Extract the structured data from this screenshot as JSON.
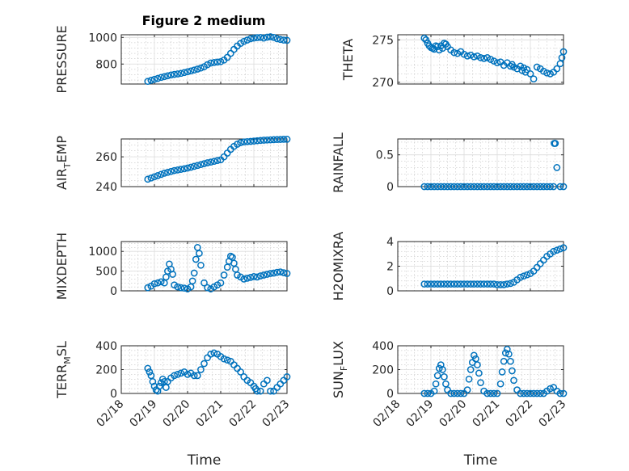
{
  "figure_title": "Figure 2 medium",
  "chart_data": [
    {
      "id": "pressure",
      "type": "scatter",
      "title": "Figure 2 medium",
      "ylabel": "PRESSURE",
      "xlabel": "",
      "xlim": [
        18,
        23
      ],
      "ylim": [
        650,
        1020
      ],
      "yticks": [
        800,
        1000
      ],
      "ytick_labels": [
        "800",
        "1000"
      ],
      "xtick_labels": [],
      "x": [
        18.8,
        18.9,
        19.0,
        19.1,
        19.2,
        19.3,
        19.4,
        19.5,
        19.6,
        19.7,
        19.8,
        19.9,
        20.0,
        20.1,
        20.2,
        20.3,
        20.4,
        20.5,
        20.6,
        20.7,
        20.8,
        20.9,
        21.0,
        21.1,
        21.2,
        21.3,
        21.4,
        21.5,
        21.6,
        21.7,
        21.8,
        21.9,
        22.0,
        22.1,
        22.2,
        22.3,
        22.4,
        22.5,
        22.6,
        22.7,
        22.8,
        22.9,
        23.0
      ],
      "y": [
        670,
        678,
        685,
        692,
        700,
        706,
        712,
        718,
        722,
        726,
        730,
        736,
        742,
        748,
        755,
        762,
        770,
        780,
        795,
        808,
        812,
        815,
        818,
        830,
        850,
        880,
        910,
        935,
        955,
        970,
        980,
        990,
        995,
        998,
        1000,
        995,
        1002,
        1005,
        1000,
        990,
        985,
        980,
        978
      ]
    },
    {
      "id": "theta",
      "type": "scatter",
      "ylabel": "THETA",
      "xlabel": "",
      "xlim": [
        18,
        23
      ],
      "ylim": [
        269.8,
        275.6
      ],
      "yticks": [
        270,
        275
      ],
      "ytick_labels": [
        "270",
        "275"
      ],
      "xtick_labels": [],
      "x": [
        18.8,
        18.85,
        18.9,
        18.95,
        19.0,
        19.05,
        19.1,
        19.15,
        19.2,
        19.25,
        19.3,
        19.35,
        19.4,
        19.45,
        19.5,
        19.6,
        19.7,
        19.8,
        19.9,
        20.0,
        20.1,
        20.2,
        20.3,
        20.4,
        20.5,
        20.6,
        20.7,
        20.8,
        20.9,
        21.0,
        21.1,
        21.2,
        21.3,
        21.4,
        21.45,
        21.5,
        21.6,
        21.7,
        21.75,
        21.8,
        21.85,
        21.9,
        22.0,
        22.1,
        22.2,
        22.3,
        22.4,
        22.5,
        22.6,
        22.7,
        22.8,
        22.9,
        22.95,
        23.0
      ],
      "y": [
        275.2,
        275.0,
        274.6,
        274.3,
        274.1,
        274.0,
        273.9,
        274.3,
        274.2,
        273.8,
        274.3,
        274.0,
        274.6,
        274.5,
        274.2,
        273.8,
        273.5,
        273.4,
        273.6,
        273.3,
        273.1,
        273.2,
        273.0,
        273.1,
        272.9,
        272.8,
        272.9,
        272.7,
        272.5,
        272.3,
        272.4,
        272.0,
        272.3,
        271.9,
        272.1,
        271.8,
        271.6,
        271.9,
        271.4,
        271.7,
        271.2,
        271.5,
        271.0,
        270.4,
        271.8,
        271.6,
        271.3,
        271.1,
        271.0,
        271.2,
        271.6,
        272.2,
        272.9,
        273.6
      ]
    },
    {
      "id": "air_temp",
      "type": "scatter",
      "ylabel": "AIR_TEMP",
      "xlabel": "",
      "xlim": [
        18,
        23
      ],
      "ylim": [
        240,
        272
      ],
      "yticks": [
        240,
        260
      ],
      "ytick_labels": [
        "240",
        "260"
      ],
      "xtick_labels": [],
      "x": [
        18.8,
        18.9,
        19.0,
        19.1,
        19.2,
        19.3,
        19.4,
        19.5,
        19.6,
        19.7,
        19.8,
        19.9,
        20.0,
        20.1,
        20.2,
        20.3,
        20.4,
        20.5,
        20.6,
        20.7,
        20.8,
        20.9,
        21.0,
        21.1,
        21.2,
        21.3,
        21.4,
        21.5,
        21.6,
        21.7,
        21.8,
        21.9,
        22.0,
        22.1,
        22.2,
        22.3,
        22.4,
        22.5,
        22.6,
        22.7,
        22.8,
        22.9,
        23.0
      ],
      "y": [
        245,
        245.8,
        246.6,
        247.4,
        248.2,
        249.0,
        249.6,
        250.2,
        250.8,
        251.2,
        251.6,
        252.0,
        252.5,
        253.0,
        253.6,
        254.2,
        254.8,
        255.4,
        256.0,
        256.5,
        257.0,
        257.5,
        258.0,
        260.0,
        262.5,
        265.0,
        267.0,
        268.5,
        269.5,
        270.0,
        270.2,
        270.4,
        270.6,
        270.8,
        271.0,
        271.2,
        271.3,
        271.4,
        271.5,
        271.6,
        271.7,
        271.8,
        271.8
      ]
    },
    {
      "id": "rainfall",
      "type": "scatter",
      "ylabel": "RAINFALL",
      "xlabel": "",
      "xlim": [
        18,
        23
      ],
      "ylim": [
        0,
        0.75
      ],
      "yticks": [
        0,
        0.5
      ],
      "ytick_labels": [
        "0",
        "0.5"
      ],
      "xtick_labels": [],
      "x": [
        18.8,
        18.9,
        19.0,
        19.1,
        19.2,
        19.3,
        19.4,
        19.5,
        19.6,
        19.7,
        19.8,
        19.9,
        20.0,
        20.1,
        20.2,
        20.3,
        20.4,
        20.5,
        20.6,
        20.7,
        20.8,
        20.9,
        21.0,
        21.1,
        21.2,
        21.3,
        21.4,
        21.5,
        21.6,
        21.7,
        21.8,
        21.9,
        22.0,
        22.1,
        22.2,
        22.3,
        22.4,
        22.5,
        22.6,
        22.7,
        22.72,
        22.75,
        22.8,
        22.9,
        23.0
      ],
      "y": [
        0,
        0,
        0,
        0,
        0,
        0,
        0,
        0,
        0,
        0,
        0,
        0,
        0,
        0,
        0,
        0,
        0,
        0,
        0,
        0,
        0,
        0,
        0,
        0,
        0,
        0,
        0,
        0,
        0,
        0,
        0,
        0,
        0,
        0,
        0,
        0,
        0,
        0,
        0,
        0,
        0.68,
        0.68,
        0.3,
        0,
        0
      ]
    },
    {
      "id": "mixdepth",
      "type": "scatter",
      "ylabel": "MIXDEPTH",
      "xlabel": "",
      "xlim": [
        18,
        23
      ],
      "ylim": [
        0,
        1250
      ],
      "yticks": [
        0,
        500,
        1000
      ],
      "ytick_labels": [
        "0",
        "500",
        "1000"
      ],
      "xtick_labels": [],
      "x": [
        18.8,
        18.9,
        19.0,
        19.1,
        19.2,
        19.3,
        19.35,
        19.4,
        19.45,
        19.5,
        19.55,
        19.6,
        19.7,
        19.8,
        19.9,
        20.0,
        20.1,
        20.15,
        20.2,
        20.25,
        20.3,
        20.35,
        20.4,
        20.5,
        20.6,
        20.7,
        20.8,
        20.9,
        21.0,
        21.1,
        21.2,
        21.25,
        21.3,
        21.35,
        21.4,
        21.45,
        21.5,
        21.6,
        21.7,
        21.8,
        21.9,
        22.0,
        22.1,
        22.2,
        22.3,
        22.4,
        22.5,
        22.6,
        22.7,
        22.8,
        22.9,
        23.0
      ],
      "y": [
        80,
        120,
        180,
        200,
        230,
        200,
        350,
        500,
        680,
        550,
        420,
        150,
        100,
        80,
        70,
        50,
        100,
        250,
        450,
        800,
        1100,
        950,
        650,
        200,
        80,
        50,
        100,
        150,
        200,
        400,
        600,
        750,
        880,
        850,
        700,
        550,
        400,
        350,
        300,
        320,
        340,
        360,
        350,
        380,
        400,
        420,
        440,
        450,
        470,
        480,
        460,
        440
      ]
    },
    {
      "id": "h2omixra",
      "type": "scatter",
      "ylabel": "H2OMIXRA",
      "xlabel": "",
      "xlim": [
        18,
        23
      ],
      "ylim": [
        0,
        4
      ],
      "yticks": [
        0,
        2,
        4
      ],
      "ytick_labels": [
        "0",
        "2",
        "4"
      ],
      "xtick_labels": [],
      "x": [
        18.8,
        18.9,
        19.0,
        19.1,
        19.2,
        19.3,
        19.4,
        19.5,
        19.6,
        19.7,
        19.8,
        19.9,
        20.0,
        20.1,
        20.2,
        20.3,
        20.4,
        20.5,
        20.6,
        20.7,
        20.8,
        20.9,
        21.0,
        21.1,
        21.2,
        21.3,
        21.4,
        21.5,
        21.6,
        21.7,
        21.8,
        21.9,
        22.0,
        22.1,
        22.2,
        22.3,
        22.4,
        22.5,
        22.6,
        22.7,
        22.8,
        22.9,
        23.0
      ],
      "y": [
        0.55,
        0.55,
        0.55,
        0.55,
        0.55,
        0.55,
        0.55,
        0.55,
        0.55,
        0.55,
        0.55,
        0.55,
        0.55,
        0.55,
        0.55,
        0.55,
        0.55,
        0.55,
        0.55,
        0.55,
        0.55,
        0.55,
        0.5,
        0.5,
        0.5,
        0.55,
        0.6,
        0.7,
        0.9,
        1.1,
        1.2,
        1.3,
        1.4,
        1.6,
        1.9,
        2.2,
        2.5,
        2.8,
        3.0,
        3.2,
        3.3,
        3.4,
        3.5
      ]
    },
    {
      "id": "terr_msl",
      "type": "scatter",
      "ylabel": "TERR_MSL",
      "xlabel": "",
      "xlim": [
        18,
        23
      ],
      "ylim": [
        0,
        400
      ],
      "yticks": [
        0,
        200,
        400
      ],
      "ytick_labels": [
        "0",
        "200",
        "400"
      ],
      "xtick_labels": [],
      "x": [
        18.8,
        18.85,
        18.9,
        18.95,
        19.0,
        19.05,
        19.1,
        19.15,
        19.2,
        19.25,
        19.3,
        19.35,
        19.4,
        19.5,
        19.6,
        19.7,
        19.8,
        19.9,
        20.0,
        20.1,
        20.2,
        20.3,
        20.4,
        20.5,
        20.6,
        20.7,
        20.8,
        20.9,
        21.0,
        21.1,
        21.2,
        21.3,
        21.4,
        21.5,
        21.6,
        21.7,
        21.8,
        21.9,
        22.0,
        22.05,
        22.1,
        22.2,
        22.3,
        22.4,
        22.5,
        22.6,
        22.7,
        22.8,
        22.9,
        23.0
      ],
      "y": [
        210,
        180,
        150,
        100,
        60,
        30,
        20,
        60,
        90,
        120,
        100,
        50,
        100,
        130,
        150,
        160,
        170,
        180,
        160,
        170,
        150,
        150,
        200,
        250,
        300,
        330,
        340,
        330,
        310,
        290,
        280,
        270,
        240,
        210,
        180,
        140,
        110,
        90,
        60,
        40,
        20,
        20,
        80,
        110,
        20,
        20,
        50,
        80,
        110,
        140
      ]
    },
    {
      "id": "sun_flux",
      "type": "scatter",
      "ylabel": "SUN_FLUX",
      "xlabel": "",
      "xlim": [
        18,
        23
      ],
      "ylim": [
        0,
        400
      ],
      "yticks": [
        0,
        200,
        400
      ],
      "ytick_labels": [
        "0",
        "200",
        "400"
      ],
      "xtick_labels": [],
      "x": [
        18.8,
        18.9,
        19.0,
        19.1,
        19.15,
        19.2,
        19.25,
        19.3,
        19.35,
        19.4,
        19.45,
        19.5,
        19.6,
        19.7,
        19.8,
        19.9,
        20.0,
        20.1,
        20.15,
        20.2,
        20.25,
        20.3,
        20.35,
        20.4,
        20.45,
        20.5,
        20.6,
        20.7,
        20.8,
        20.9,
        21.0,
        21.1,
        21.15,
        21.2,
        21.25,
        21.3,
        21.35,
        21.4,
        21.45,
        21.5,
        21.6,
        21.7,
        21.8,
        21.9,
        22.0,
        22.1,
        22.2,
        22.3,
        22.4,
        22.5,
        22.6,
        22.7,
        22.8,
        22.9,
        23.0
      ],
      "y": [
        0,
        0,
        0,
        20,
        80,
        150,
        210,
        240,
        200,
        140,
        80,
        30,
        0,
        0,
        0,
        0,
        0,
        30,
        120,
        200,
        260,
        320,
        290,
        240,
        170,
        90,
        20,
        0,
        0,
        0,
        0,
        80,
        180,
        270,
        340,
        370,
        330,
        270,
        190,
        110,
        30,
        0,
        0,
        0,
        0,
        0,
        0,
        0,
        0,
        20,
        40,
        50,
        20,
        0,
        0
      ]
    }
  ],
  "x_axis": {
    "label": "Time",
    "tick_labels": [
      "02/18",
      "02/19",
      "02/20",
      "02/21",
      "02/22",
      "02/23"
    ]
  },
  "colors": {
    "marker": "#0072BD"
  }
}
